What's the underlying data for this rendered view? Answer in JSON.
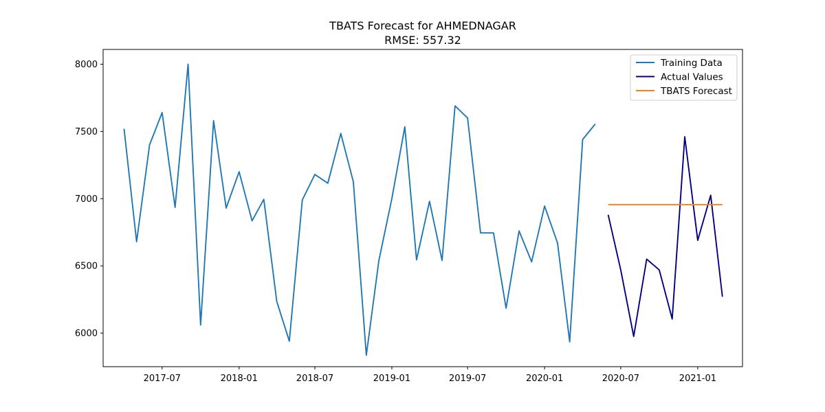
{
  "chart_data": {
    "type": "line",
    "title": "TBATS Forecast for AHMEDNAGAR",
    "subtitle": "RMSE: 557.32",
    "xlabel": "",
    "ylabel": "",
    "ylim": [
      5750,
      8110
    ],
    "xlim": [
      "2017-02-10",
      "2021-04-18"
    ],
    "x_ticks": [
      "2017-07-01",
      "2018-01-01",
      "2018-07-01",
      "2019-01-01",
      "2019-07-01",
      "2020-01-01",
      "2020-07-01",
      "2021-01-01"
    ],
    "x_tick_labels": [
      "2017-07",
      "2018-01",
      "2018-07",
      "2019-01",
      "2019-07",
      "2020-01",
      "2020-07",
      "2021-01"
    ],
    "y_ticks": [
      6000,
      6500,
      7000,
      7500,
      8000
    ],
    "y_tick_labels": [
      "6000",
      "6500",
      "7000",
      "7500",
      "8000"
    ],
    "grid": false,
    "legend_position": "top-right",
    "series": [
      {
        "name": "Training Data",
        "color": "#1f77b4",
        "points": [
          [
            "2017-04-01",
            7520
          ],
          [
            "2017-05-01",
            6680
          ],
          [
            "2017-06-01",
            7400
          ],
          [
            "2017-07-01",
            7640
          ],
          [
            "2017-08-01",
            6935
          ],
          [
            "2017-09-01",
            8000
          ],
          [
            "2017-10-01",
            6060
          ],
          [
            "2017-11-01",
            7580
          ],
          [
            "2017-12-01",
            6930
          ],
          [
            "2018-01-01",
            7200
          ],
          [
            "2018-02-01",
            6835
          ],
          [
            "2018-03-01",
            6995
          ],
          [
            "2018-04-01",
            6235
          ],
          [
            "2018-05-01",
            5940
          ],
          [
            "2018-06-01",
            6990
          ],
          [
            "2018-07-01",
            7180
          ],
          [
            "2018-08-01",
            7115
          ],
          [
            "2018-09-01",
            7485
          ],
          [
            "2018-10-01",
            7125
          ],
          [
            "2018-11-01",
            5835
          ],
          [
            "2018-12-01",
            6540
          ],
          [
            "2019-01-01",
            7000
          ],
          [
            "2019-02-01",
            7535
          ],
          [
            "2019-03-01",
            6545
          ],
          [
            "2019-04-01",
            6980
          ],
          [
            "2019-05-01",
            6540
          ],
          [
            "2019-06-01",
            7690
          ],
          [
            "2019-07-01",
            7600
          ],
          [
            "2019-08-01",
            6745
          ],
          [
            "2019-09-01",
            6745
          ],
          [
            "2019-10-01",
            6185
          ],
          [
            "2019-11-01",
            6760
          ],
          [
            "2019-12-01",
            6530
          ],
          [
            "2020-01-01",
            6945
          ],
          [
            "2020-02-01",
            6670
          ],
          [
            "2020-03-01",
            5935
          ],
          [
            "2020-04-01",
            7440
          ],
          [
            "2020-05-01",
            7555
          ]
        ]
      },
      {
        "name": "Actual Values",
        "color": "#000080",
        "points": [
          [
            "2020-06-01",
            6880
          ],
          [
            "2020-07-01",
            6470
          ],
          [
            "2020-08-01",
            5975
          ],
          [
            "2020-09-01",
            6550
          ],
          [
            "2020-10-01",
            6470
          ],
          [
            "2020-11-01",
            6105
          ],
          [
            "2020-12-01",
            7460
          ],
          [
            "2021-01-01",
            6690
          ],
          [
            "2021-02-01",
            7025
          ],
          [
            "2021-03-01",
            6270
          ]
        ]
      },
      {
        "name": "TBATS Forecast",
        "color": "#ff7f0e",
        "points": [
          [
            "2020-06-01",
            6955
          ],
          [
            "2020-07-01",
            6955
          ],
          [
            "2020-08-01",
            6955
          ],
          [
            "2020-09-01",
            6955
          ],
          [
            "2020-10-01",
            6955
          ],
          [
            "2020-11-01",
            6955
          ],
          [
            "2020-12-01",
            6955
          ],
          [
            "2021-01-01",
            6955
          ],
          [
            "2021-02-01",
            6955
          ],
          [
            "2021-03-01",
            6955
          ]
        ]
      }
    ]
  }
}
